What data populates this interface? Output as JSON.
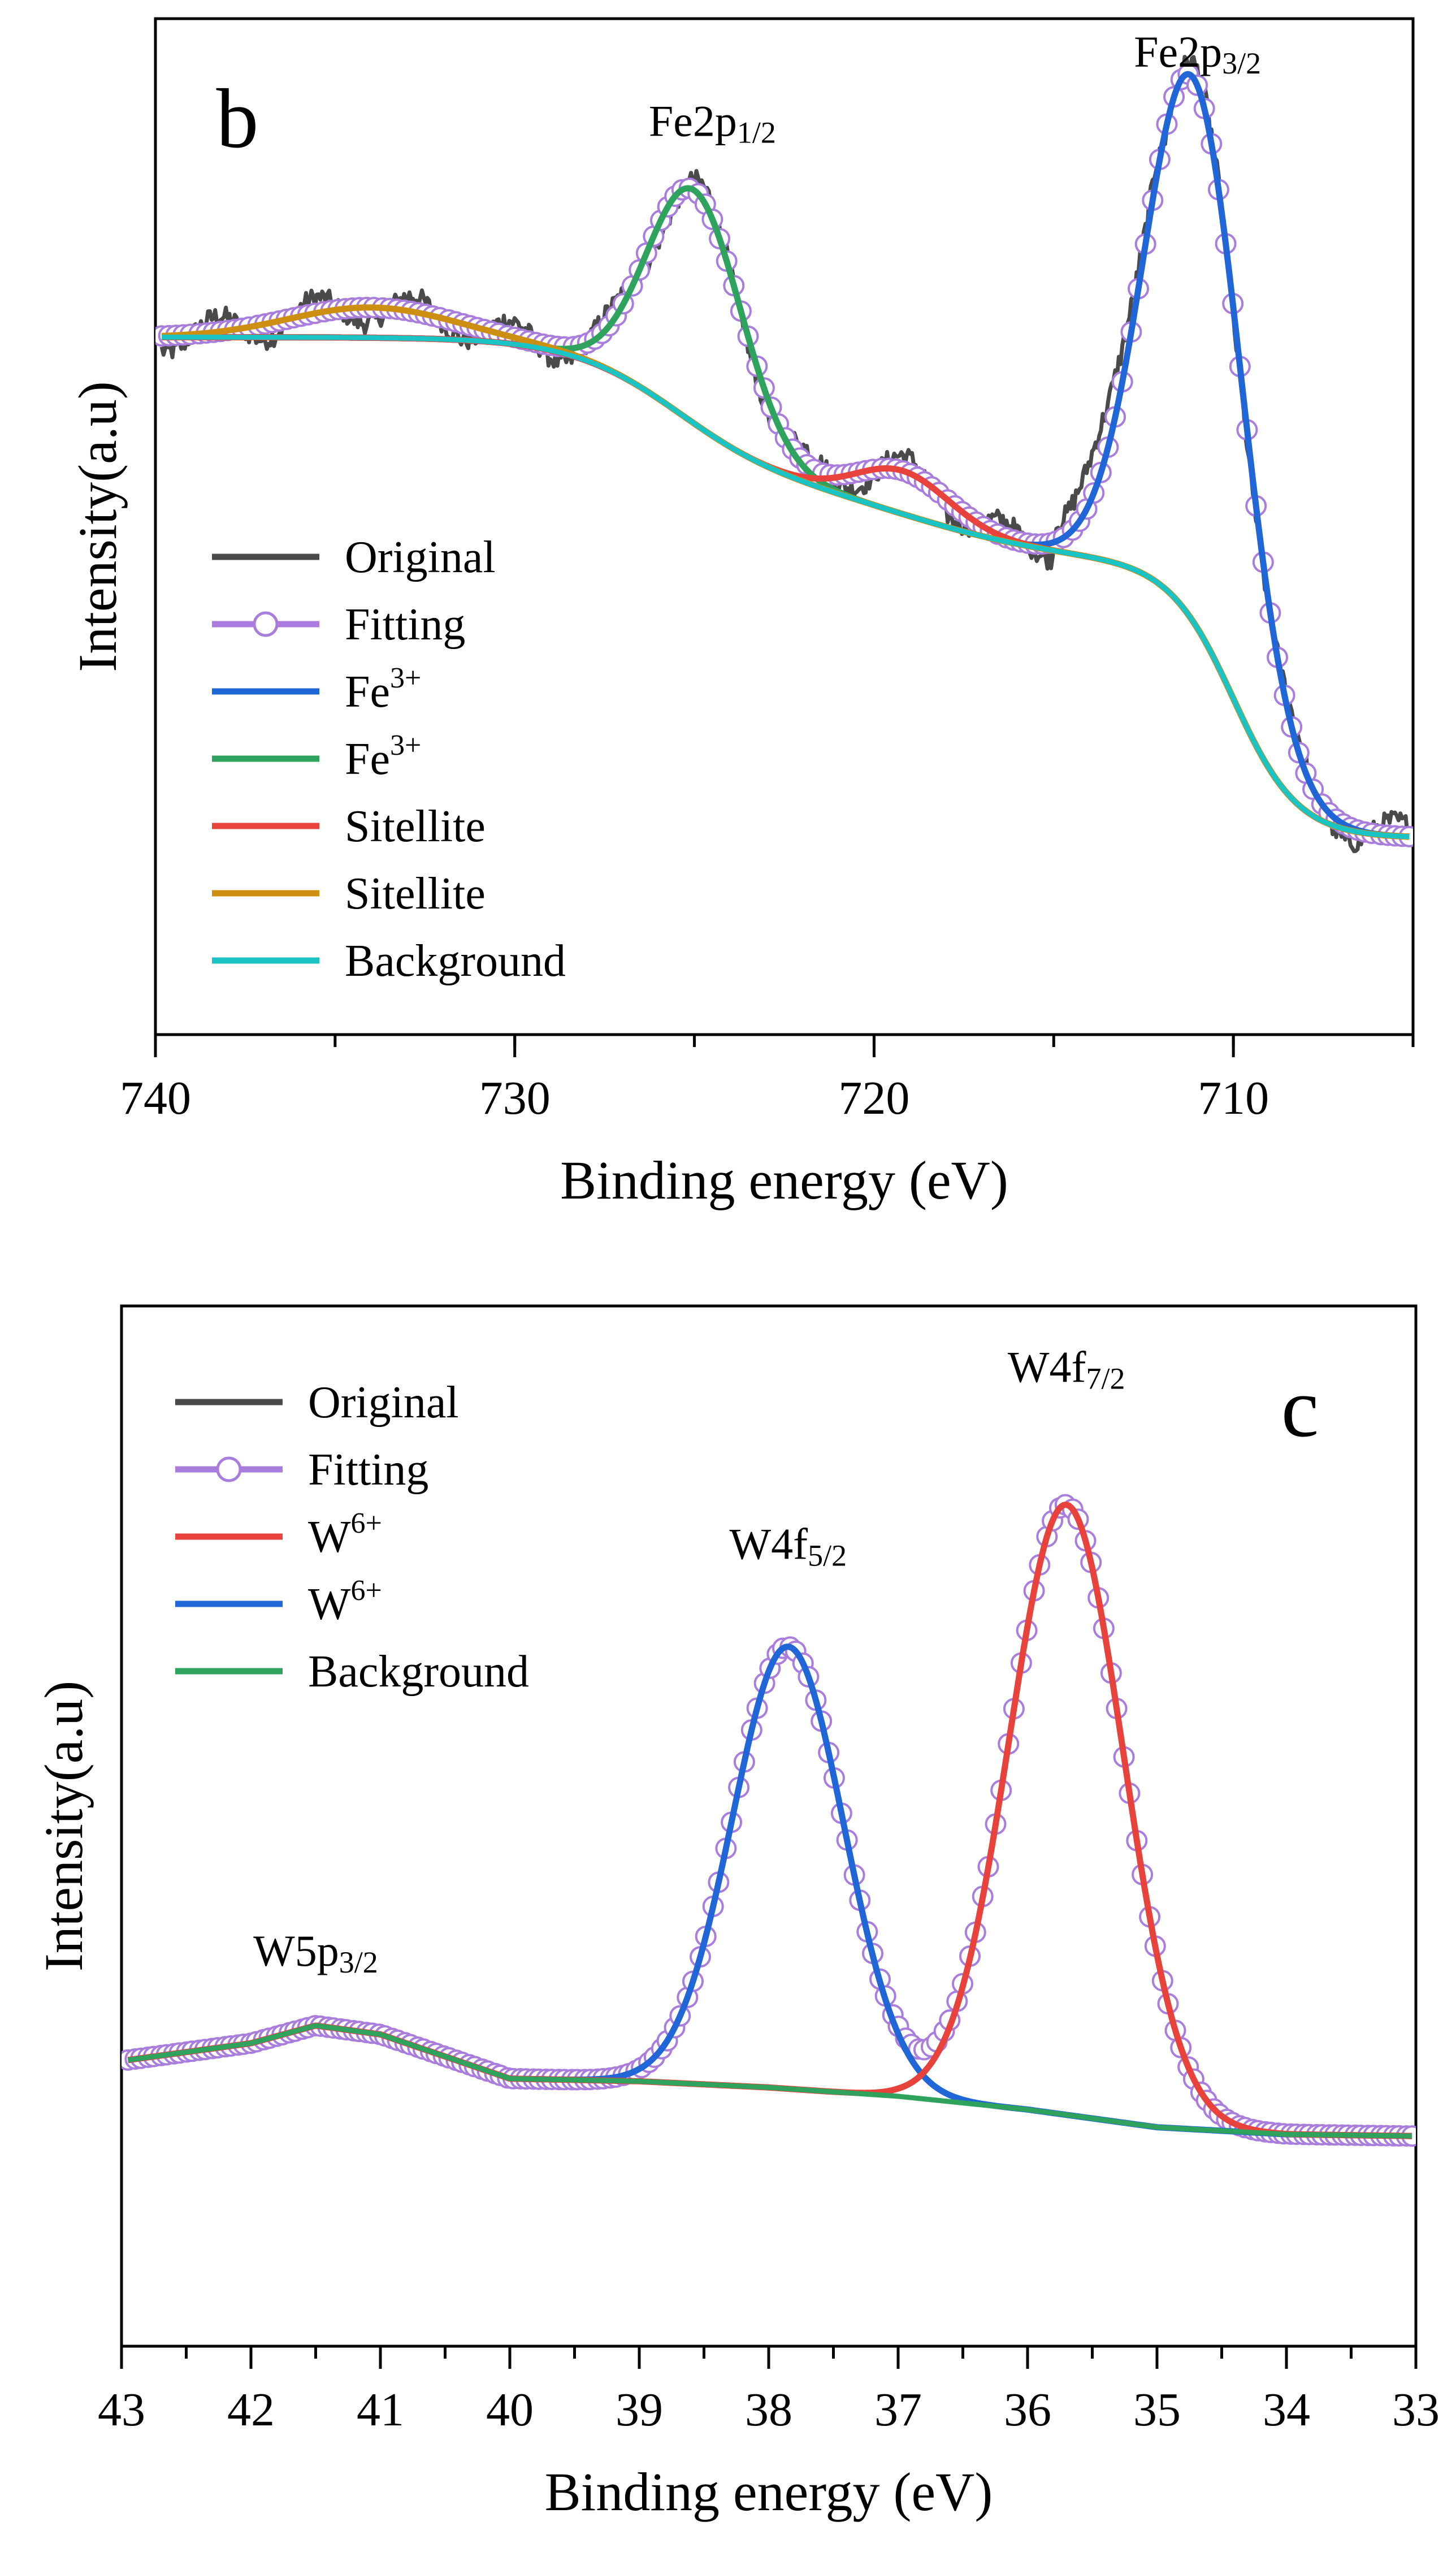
{
  "chart_data": [
    {
      "type": "line",
      "panel_label": "b",
      "xlabel": "Binding energy (eV)",
      "ylabel": "Intensity(a.u)",
      "xlim": [
        740,
        705
      ],
      "ylim": [
        0,
        100
      ],
      "xticks": [
        740,
        730,
        720,
        710
      ],
      "x_direction": "reversed",
      "annotations": [
        {
          "name": "fe2p12",
          "base": "Fe2p",
          "sub": "1/2",
          "x": 724.5,
          "y": 91
        },
        {
          "name": "fe2p32",
          "base": "Fe2p",
          "sub": "3/2",
          "x": 711.0,
          "y": 99
        }
      ],
      "legend": [
        {
          "label": "Original",
          "sup": "",
          "color": "#4a4a4a",
          "marker": false
        },
        {
          "label": "Fitting",
          "sup": "",
          "color": "#a97ddc",
          "marker": true
        },
        {
          "label": "Fe",
          "sup": "3+",
          "color": "#2166d6",
          "marker": false
        },
        {
          "label": "Fe",
          "sup": "3+",
          "color": "#2fa35d",
          "marker": false
        },
        {
          "label": "Sitellite",
          "sup": "",
          "color": "#e8423c",
          "marker": false
        },
        {
          "label": "Sitellite",
          "sup": "",
          "color": "#cc8f12",
          "marker": false
        },
        {
          "label": "Background",
          "sup": "",
          "color": "#1bc4c4",
          "marker": false
        }
      ],
      "model": {
        "background": {
          "type": "shirley_steps",
          "low": 11,
          "high": 69,
          "steps": [
            {
              "x0": 718.8,
              "w": 2.2,
              "frac": 0.17
            },
            {
              "x0": 725.5,
              "w": 1.5,
              "frac": 0.28
            },
            {
              "x0": 710.0,
              "w": 0.9,
              "frac": 0.55
            }
          ]
        },
        "components": [
          {
            "name": "Fe3+ (2p3/2)",
            "color": "#2166d6",
            "center": 711.1,
            "height": 63,
            "sigma": 1.35
          },
          {
            "name": "Fe3+ (2p1/2)",
            "color": "#2fa35d",
            "center": 725.0,
            "height": 27,
            "sigma": 1.3
          },
          {
            "name": "Sitellite",
            "color": "#e8423c",
            "center": 719.2,
            "height": 5,
            "sigma": 1.3
          },
          {
            "name": "Sitellite",
            "color": "#cc8f12",
            "center": 734.0,
            "height": 3.5,
            "sigma": 2.3
          }
        ]
      }
    },
    {
      "type": "line",
      "panel_label": "c",
      "xlabel": "Binding energy (eV)",
      "ylabel": "Intensity(a.u)",
      "xlim": [
        43,
        33
      ],
      "ylim": [
        0,
        100
      ],
      "xticks": [
        43,
        42,
        41,
        40,
        39,
        38,
        37,
        36,
        35,
        34,
        33
      ],
      "x_direction": "reversed",
      "annotations": [
        {
          "name": "w4f52",
          "base": "W4f",
          "sub": "5/2",
          "x": 37.85,
          "y": 76
        },
        {
          "name": "w4f72",
          "base": "W4f",
          "sub": "7/2",
          "x": 35.7,
          "y": 96
        },
        {
          "name": "w5p32",
          "base": "W5p",
          "sub": "3/2",
          "x": 41.5,
          "y": 30
        }
      ],
      "legend": [
        {
          "label": "Original",
          "sup": "",
          "color": "#4a4a4a",
          "marker": false
        },
        {
          "label": "Fitting",
          "sup": "",
          "color": "#a97ddc",
          "marker": true
        },
        {
          "label": "W",
          "sup": "6+",
          "color": "#e8423c",
          "marker": false
        },
        {
          "label": "W",
          "sup": "6+",
          "color": "#2166d6",
          "marker": false
        },
        {
          "label": "Background",
          "sup": "",
          "color": "#2fa35d",
          "marker": false
        }
      ],
      "model": {
        "background_points": [
          [
            43,
            20.5
          ],
          [
            42.5,
            21.5
          ],
          [
            42,
            22.5
          ],
          [
            41.5,
            24.5
          ],
          [
            41,
            23.5
          ],
          [
            40.5,
            21.0
          ],
          [
            40,
            18.5
          ],
          [
            39,
            18.2
          ],
          [
            38,
            17.5
          ],
          [
            37,
            16.5
          ],
          [
            36,
            15.0
          ],
          [
            35,
            13.0
          ],
          [
            34,
            12.2
          ],
          [
            33,
            12.0
          ]
        ],
        "components": [
          {
            "name": "W6+ (4f5/2)",
            "color": "#2166d6",
            "center": 37.85,
            "height": 50,
            "sigma": 0.43
          },
          {
            "name": "W6+ (4f7/2)",
            "color": "#e8423c",
            "center": 35.7,
            "height": 69,
            "sigma": 0.44
          }
        ]
      }
    }
  ]
}
